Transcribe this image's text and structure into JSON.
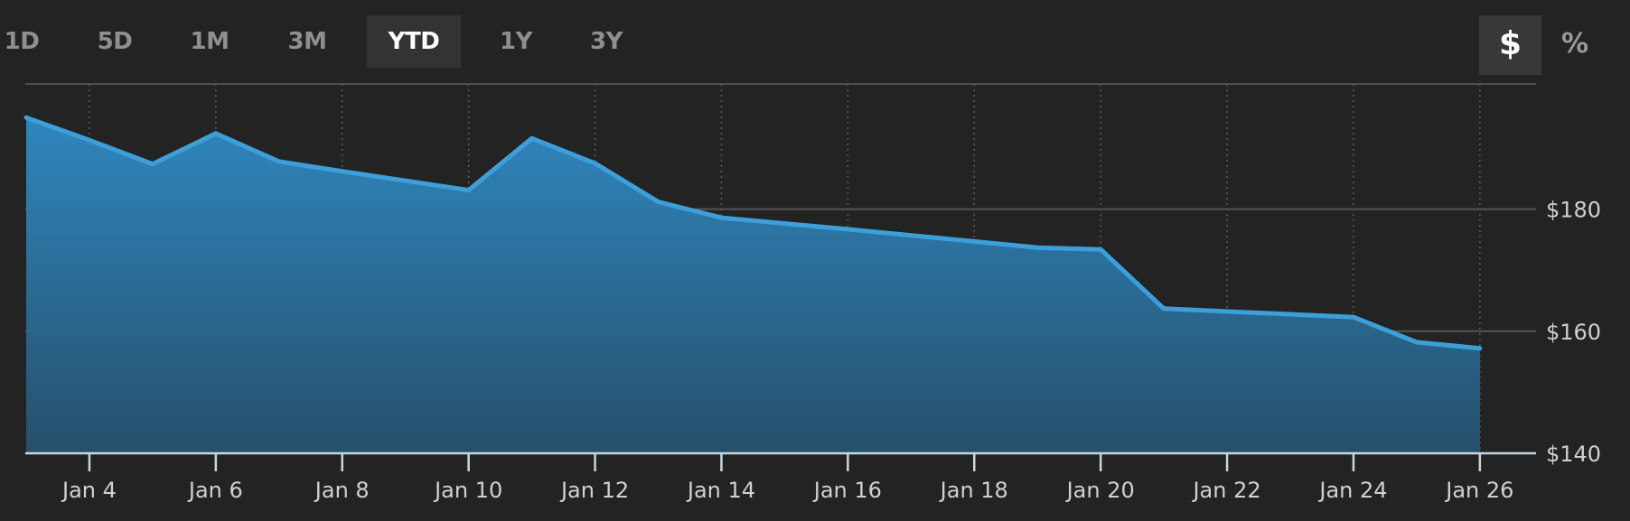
{
  "range_tabs": [
    {
      "label": "1D",
      "active": false
    },
    {
      "label": "5D",
      "active": false
    },
    {
      "label": "1M",
      "active": false
    },
    {
      "label": "3M",
      "active": false
    },
    {
      "label": "YTD",
      "active": true
    },
    {
      "label": "1Y",
      "active": false
    },
    {
      "label": "3Y",
      "active": false
    }
  ],
  "unit_toggle": {
    "dollar_label": "$",
    "percent_label": "%",
    "selected": "dollar"
  },
  "colors": {
    "background": "#232323",
    "line": "#3d9fd9",
    "fill_top": "#2f86bf",
    "fill_bottom": "#25506b",
    "grid": "#555555",
    "text": "#d0d0d0"
  },
  "chart_data": {
    "type": "area",
    "title": "",
    "xlabel": "",
    "ylabel": "",
    "x_start": "Jan 3",
    "x_end": "Jan 26",
    "x_ticks": [
      "Jan 4",
      "Jan 6",
      "Jan 8",
      "Jan 10",
      "Jan 12",
      "Jan 14",
      "Jan 16",
      "Jan 18",
      "Jan 20",
      "Jan 22",
      "Jan 24",
      "Jan 26"
    ],
    "y_ticks": [
      "$140",
      "$160",
      "$180"
    ],
    "y_tick_values": [
      140,
      160,
      180
    ],
    "ylim": [
      140,
      200.5
    ],
    "y_axis_position": "right",
    "grid": true,
    "series": [
      {
        "points": [
          {
            "x": "Jan 3",
            "y": 195.0
          },
          {
            "x": "Jan 4",
            "y": 191.3
          },
          {
            "x": "Jan 5",
            "y": 187.4
          },
          {
            "x": "Jan 6",
            "y": 192.4
          },
          {
            "x": "Jan 7",
            "y": 187.8
          },
          {
            "x": "Jan 8",
            "y": 186.2
          },
          {
            "x": "Jan 10",
            "y": 183.1
          },
          {
            "x": "Jan 11",
            "y": 191.6
          },
          {
            "x": "Jan 12",
            "y": 187.5
          },
          {
            "x": "Jan 13",
            "y": 181.2
          },
          {
            "x": "Jan 14",
            "y": 178.6
          },
          {
            "x": "Jan 16",
            "y": 176.7
          },
          {
            "x": "Jan 19",
            "y": 173.7
          },
          {
            "x": "Jan 20",
            "y": 173.4
          },
          {
            "x": "Jan 21",
            "y": 163.7
          },
          {
            "x": "Jan 24",
            "y": 162.3
          },
          {
            "x": "Jan 25",
            "y": 158.2
          },
          {
            "x": "Jan 26",
            "y": 157.2
          }
        ]
      }
    ]
  }
}
